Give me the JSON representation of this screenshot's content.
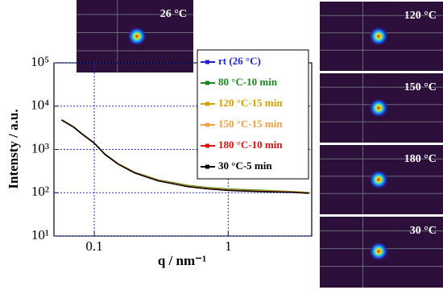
{
  "chart_data": {
    "type": "line",
    "x_label": "q / nm⁻¹",
    "y_label": "Intensty / a.u.",
    "log_x": true,
    "log_y": true,
    "grid": true,
    "xlim": [
      0.05,
      4.2
    ],
    "ylim": [
      10,
      100000
    ],
    "xticks": [
      0.1,
      1
    ],
    "yticks": [
      {
        "value": 10,
        "label": "10¹"
      },
      {
        "value": 100,
        "label": "10²"
      },
      {
        "value": 1000,
        "label": "10³"
      },
      {
        "value": 10000,
        "label": "10⁴"
      },
      {
        "value": 100000,
        "label": "10⁵"
      }
    ],
    "x": [
      0.057,
      0.07,
      0.08,
      0.1,
      0.12,
      0.15,
      0.2,
      0.25,
      0.3,
      0.4,
      0.5,
      0.7,
      1,
      1.5,
      2,
      3,
      4
    ],
    "series": [
      {
        "name": "rt (26 °C)",
        "color": "#1f1fd6",
        "values": [
          4800,
          3300,
          2350,
          1400,
          775,
          465,
          290,
          230,
          190,
          160,
          140,
          125,
          115,
          110,
          107,
          105,
          100
        ]
      },
      {
        "name": "80 °C-10 min",
        "color": "#1a8a1a",
        "values": [
          4900,
          3350,
          2380,
          1420,
          790,
          475,
          298,
          238,
          198,
          168,
          148,
          132,
          122,
          116,
          112,
          106,
          101
        ]
      },
      {
        "name": "120 °C-15 min",
        "color": "#d4a000",
        "values": [
          4850,
          3320,
          2360,
          1410,
          780,
          470,
          293,
          233,
          193,
          163,
          143,
          128,
          118,
          112,
          109,
          105,
          100
        ]
      },
      {
        "name": "150 °C-15 min",
        "color": "#f0a040",
        "values": [
          4820,
          3310,
          2355,
          1405,
          778,
          468,
          292,
          232,
          192,
          162,
          142,
          127,
          117,
          111,
          108,
          104,
          99
        ]
      },
      {
        "name": "180 °C-10 min",
        "color": "#e01010",
        "values": [
          4780,
          3290,
          2340,
          1395,
          772,
          462,
          288,
          228,
          189,
          159,
          139,
          124,
          114,
          109,
          106,
          103,
          98
        ]
      },
      {
        "name": "30 °C-5 min",
        "color": "#000000",
        "values": [
          4750,
          3280,
          2330,
          1390,
          768,
          460,
          286,
          226,
          188,
          158,
          138,
          123,
          113,
          108,
          105,
          102,
          97
        ]
      }
    ]
  },
  "insets": [
    {
      "label": "26 °C"
    },
    {
      "label": "120 °C"
    },
    {
      "label": "150 °C"
    },
    {
      "label": "180 °C"
    },
    {
      "label": "30 °C"
    }
  ]
}
